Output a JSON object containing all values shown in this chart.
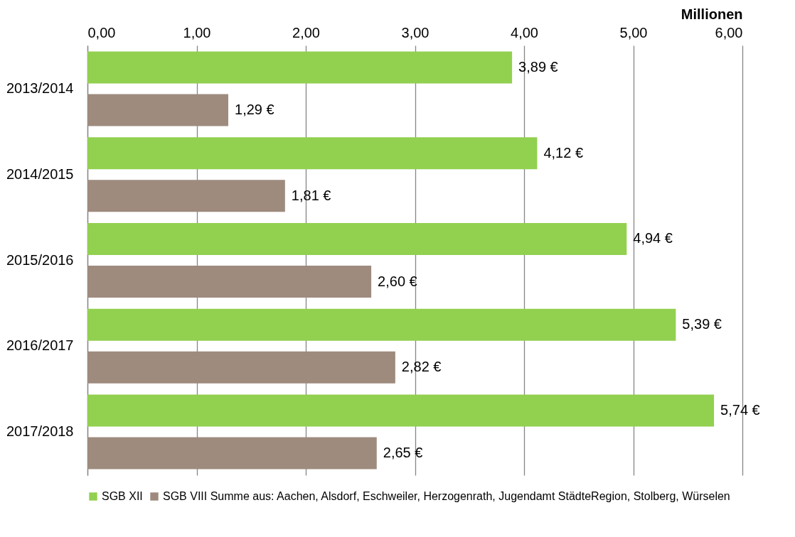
{
  "chart_data": {
    "type": "bar",
    "orientation": "horizontal",
    "xlabel": "Millionen",
    "categories": [
      "2013/2014",
      "2014/2015",
      "2015/2016",
      "2016/2017",
      "2017/2018"
    ],
    "series": [
      {
        "name": "SGB XII",
        "color": "#92d050",
        "values": [
          3.89,
          4.12,
          4.94,
          5.39,
          5.74
        ],
        "value_labels": [
          "3,89 €",
          "4,12 €",
          "4,94 €",
          "5,39 €",
          "5,74 €"
        ]
      },
      {
        "name": "SGB VIII Summe aus: Aachen, Alsdorf, Eschweiler, Herzogenrath, Jugendamt StädteRegion, Stolberg, Würselen",
        "color": "#9e8b7e",
        "values": [
          1.29,
          1.81,
          2.6,
          2.82,
          2.65
        ],
        "value_labels": [
          "1,29 €",
          "1,81 €",
          "2,60 €",
          "2,82 €",
          "2,65 €"
        ]
      }
    ],
    "xlim": [
      0,
      6
    ],
    "xticks": [
      {
        "value": 0,
        "label": "0,00"
      },
      {
        "value": 1,
        "label": "1,00"
      },
      {
        "value": 2,
        "label": "2,00"
      },
      {
        "value": 3,
        "label": "3,00"
      },
      {
        "value": 4,
        "label": "4,00"
      },
      {
        "value": 5,
        "label": "5,00"
      },
      {
        "value": 6,
        "label": "6,00"
      }
    ],
    "grid": "x",
    "legend": "bottom"
  }
}
